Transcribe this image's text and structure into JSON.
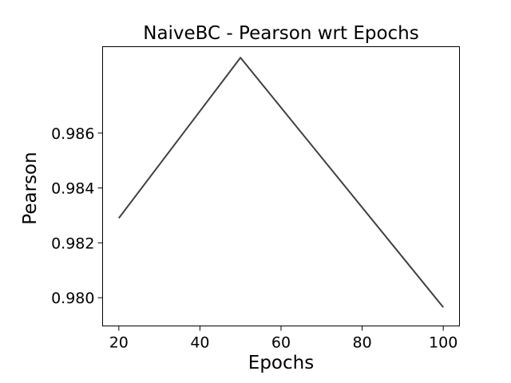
{
  "chart_data": {
    "type": "line",
    "title": "NaiveBC - Pearson wrt Epochs",
    "xlabel": "Epochs",
    "ylabel": "Pearson",
    "x": [
      20,
      50,
      100
    ],
    "series": [
      {
        "values": [
          0.9829,
          0.98875,
          0.97965
        ],
        "color": "#404040"
      }
    ],
    "xlim": [
      16,
      104
    ],
    "ylim": [
      0.97897,
      0.98915
    ],
    "xticks": [
      20,
      40,
      60,
      80,
      100
    ],
    "xtick_labels": [
      "20",
      "40",
      "60",
      "80",
      "100"
    ],
    "yticks": [
      0.98,
      0.982,
      0.984,
      0.986
    ],
    "ytick_labels": [
      "0.980",
      "0.982",
      "0.984",
      "0.986"
    ],
    "grid": false,
    "legend": false
  }
}
